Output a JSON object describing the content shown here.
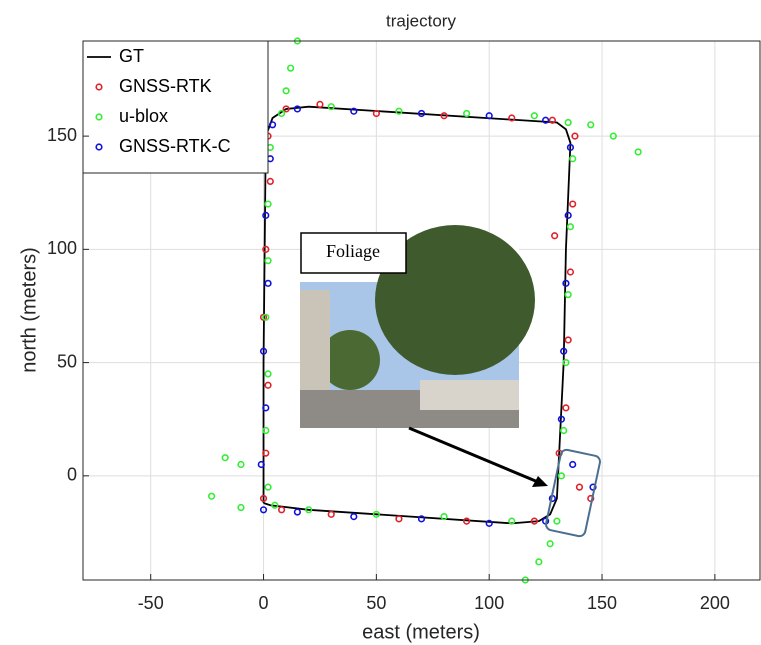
{
  "chart_data": {
    "type": "scatter",
    "title": "trajectory",
    "x_label": "east (meters)",
    "y_label": "north (meters)",
    "xlim": [
      -80,
      220
    ],
    "ylim": [
      -46,
      192
    ],
    "xticks": [
      -50,
      0,
      50,
      100,
      150,
      200
    ],
    "yticks": [
      0,
      50,
      100,
      150
    ],
    "grid": true,
    "legend": "upper left",
    "annotation": "Foliage",
    "series": [
      {
        "name": "GT",
        "color": "#000000",
        "marker": "line",
        "x": [
          0,
          0,
          1,
          4,
          10,
          20,
          130,
          134,
          136,
          134,
          133,
          131,
          130,
          127,
          122,
          110,
          20,
          3,
          0
        ],
        "values": [
          -12,
          50,
          150,
          158,
          162,
          163,
          156,
          153,
          147,
          100,
          50,
          10,
          -10,
          -17,
          -20,
          -21,
          -15,
          -13,
          -12
        ]
      },
      {
        "name": "GNSS-RTK",
        "color": "#e0202a",
        "marker": "circle",
        "x": [
          0,
          1,
          2,
          0,
          1,
          3,
          2,
          10,
          25,
          50,
          80,
          110,
          128,
          138,
          137,
          129,
          136,
          135,
          134,
          131,
          140,
          145,
          120,
          90,
          60,
          30,
          8
        ],
        "values": [
          -10,
          10,
          40,
          70,
          100,
          130,
          150,
          162,
          164,
          160,
          159,
          158,
          157,
          150,
          120,
          106,
          90,
          60,
          30,
          10,
          -5,
          -10,
          -20,
          -20,
          -19,
          -17,
          -15
        ]
      },
      {
        "name": "u-blox",
        "color": "#33ee33",
        "marker": "circle",
        "x": [
          2,
          1,
          2,
          1,
          2,
          2,
          3,
          8,
          30,
          60,
          90,
          120,
          135,
          145,
          155,
          166,
          137,
          136,
          135,
          134,
          133,
          132,
          130,
          127,
          122,
          116,
          110,
          80,
          50,
          20,
          5,
          -10,
          -23,
          -17,
          -10,
          10,
          12,
          15
        ],
        "values": [
          -5,
          20,
          45,
          70,
          95,
          120,
          145,
          160,
          163,
          161,
          160,
          159,
          156,
          155,
          150,
          143,
          140,
          110,
          80,
          50,
          20,
          0,
          -20,
          -30,
          -38,
          -46,
          -20,
          -18,
          -17,
          -15,
          -13,
          -14,
          -9,
          8,
          5,
          170,
          180,
          192
        ]
      },
      {
        "name": "GNSS-RTK-C",
        "color": "#1010dd",
        "marker": "circle",
        "x": [
          0,
          -1,
          1,
          0,
          2,
          1,
          3,
          4,
          15,
          40,
          70,
          100,
          125,
          136,
          135,
          134,
          133,
          132,
          137,
          146,
          128,
          125,
          100,
          70,
          40,
          15
        ],
        "values": [
          -15,
          5,
          30,
          55,
          85,
          115,
          140,
          155,
          162,
          161,
          160,
          159,
          157,
          145,
          115,
          85,
          55,
          25,
          5,
          -5,
          -10,
          -20,
          -21,
          -19,
          -18,
          -16
        ]
      }
    ]
  }
}
